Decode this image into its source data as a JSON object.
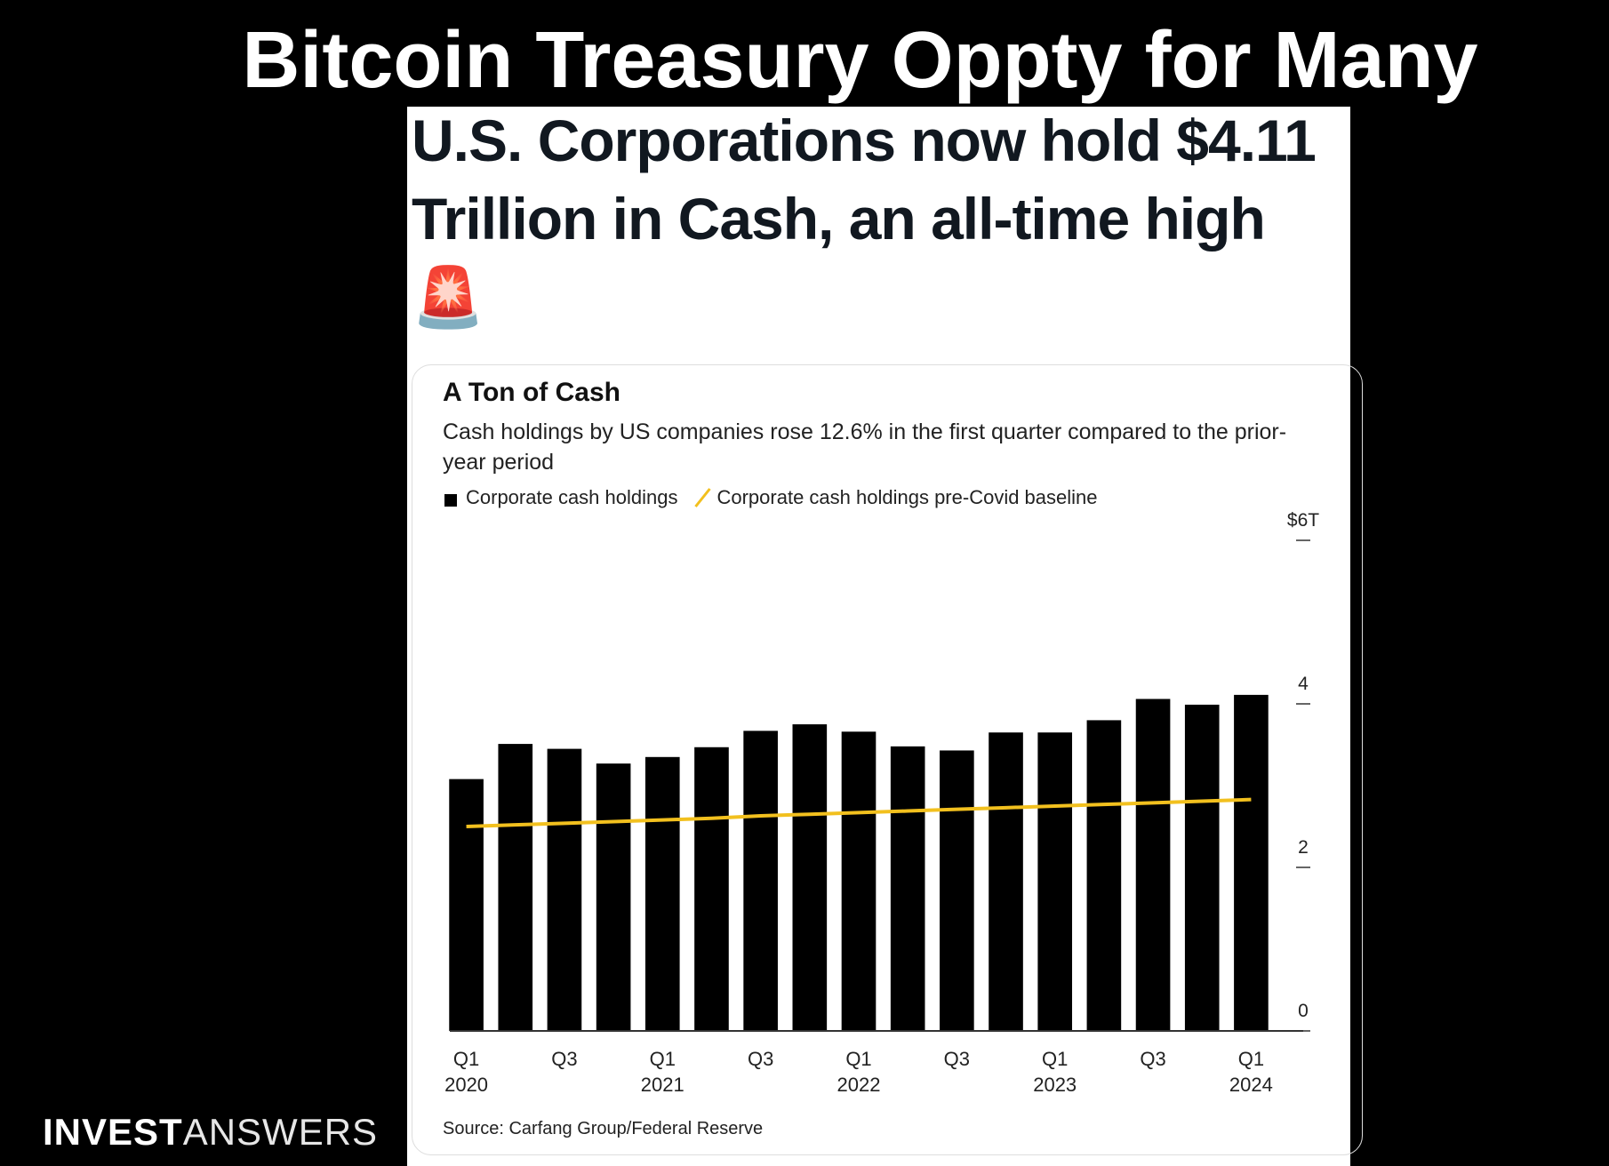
{
  "slide_title": "Bitcoin Treasury Oppty for Many",
  "post_title": "U.S. Corporations now hold $4.11 Trillion in Cash, an all-time high 🚨",
  "brand": [
    "INVEST",
    "ANSWERS"
  ],
  "chart_data": {
    "type": "bar",
    "title": "A Ton of Cash",
    "subtitle": "Cash holdings by US companies rose 12.6% in the first quarter compared to the prior-year period",
    "source": "Source: Carfang Group/Federal Reserve",
    "categories": [
      "Q1\n2020",
      null,
      "Q3",
      null,
      "Q1\n2021",
      null,
      "Q3",
      null,
      "Q1\n2022",
      null,
      "Q3",
      null,
      "Q1\n2023",
      null,
      "Q3",
      null,
      "Q1\n2024"
    ],
    "series": [
      {
        "name": "Corporate cash holdings",
        "type": "bar",
        "color": "#000000",
        "values": [
          3.08,
          3.51,
          3.45,
          3.27,
          3.35,
          3.47,
          3.67,
          3.75,
          3.66,
          3.48,
          3.43,
          3.65,
          3.65,
          3.8,
          4.06,
          3.99,
          4.11
        ]
      },
      {
        "name": "Corporate cash holdings pre-Covid baseline",
        "type": "line",
        "color": "#f2c01e",
        "values": [
          2.5,
          2.52,
          2.54,
          2.56,
          2.58,
          2.6,
          2.63,
          2.65,
          2.67,
          2.69,
          2.71,
          2.73,
          2.75,
          2.77,
          2.79,
          2.81,
          2.83
        ]
      }
    ],
    "ylim": [
      0,
      6
    ],
    "yticks": [
      0,
      2,
      4,
      {
        "value": 6,
        "label": "$6T"
      }
    ],
    "y_axis_side": "right",
    "grid": false
  }
}
